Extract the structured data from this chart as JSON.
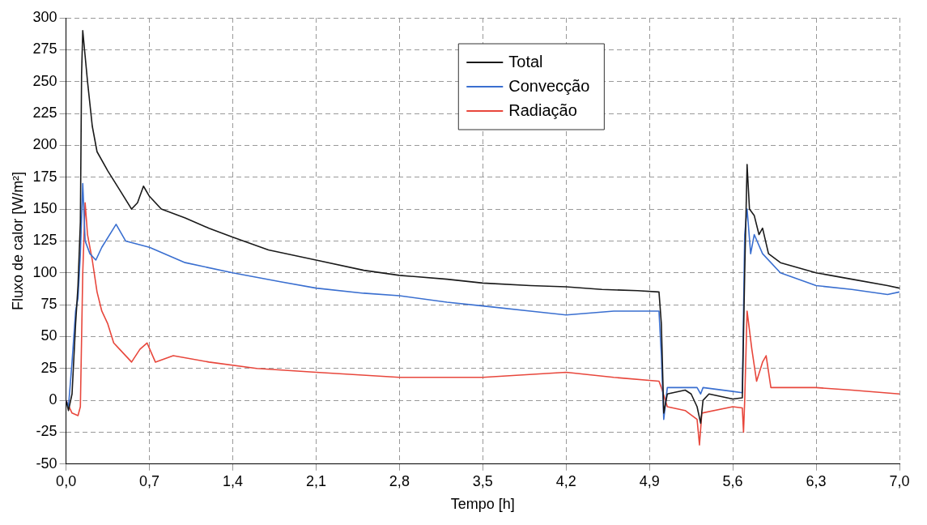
{
  "chart_data": {
    "type": "line",
    "xlabel": "Tempo [h]",
    "ylabel": "Fluxo de calor [W/m²]",
    "xlim": [
      0,
      7
    ],
    "xticks": [
      {
        "value": 0,
        "label": "0,0"
      },
      {
        "value": 0.7,
        "label": "0,7"
      },
      {
        "value": 1.4,
        "label": "1,4"
      },
      {
        "value": 2.1,
        "label": "2,1"
      },
      {
        "value": 2.8,
        "label": "2,8"
      },
      {
        "value": 3.5,
        "label": "3,5"
      },
      {
        "value": 4.2,
        "label": "4,2"
      },
      {
        "value": 4.9,
        "label": "4,9"
      },
      {
        "value": 5.6,
        "label": "5,6"
      },
      {
        "value": 6.3,
        "label": "6,3"
      },
      {
        "value": 7.0,
        "label": "7,0"
      }
    ],
    "ylim": [
      -50,
      300
    ],
    "yticks": [
      -50,
      -25,
      0,
      25,
      50,
      75,
      100,
      125,
      150,
      175,
      200,
      225,
      250,
      275,
      300
    ],
    "grid": true,
    "legend": "top",
    "marker": "none",
    "line_style": "solid",
    "series": [
      {
        "name": "Total",
        "color": "#1a1a1a",
        "x": [
          0,
          0.02,
          0.05,
          0.08,
          0.1,
          0.12,
          0.13,
          0.14,
          0.16,
          0.18,
          0.22,
          0.26,
          0.35,
          0.45,
          0.55,
          0.6,
          0.65,
          0.7,
          0.8,
          1.0,
          1.2,
          1.4,
          1.7,
          2.1,
          2.5,
          2.8,
          3.2,
          3.5,
          3.9,
          4.2,
          4.5,
          4.8,
          4.98,
          5.0,
          5.02,
          5.05,
          5.2,
          5.25,
          5.3,
          5.33,
          5.35,
          5.4,
          5.6,
          5.68,
          5.7,
          5.72,
          5.74,
          5.78,
          5.82,
          5.85,
          5.9,
          6.0,
          6.3,
          6.6,
          6.9,
          7.0
        ],
        "values": [
          0,
          -8,
          5,
          60,
          90,
          140,
          255,
          290,
          270,
          250,
          215,
          195,
          180,
          165,
          150,
          155,
          168,
          160,
          150,
          143,
          135,
          128,
          118,
          110,
          102,
          98,
          95,
          92,
          90,
          89,
          87,
          86,
          85,
          60,
          -10,
          5,
          8,
          5,
          -5,
          -18,
          0,
          5,
          1,
          2,
          100,
          185,
          150,
          145,
          130,
          135,
          115,
          108,
          100,
          95,
          90,
          88
        ]
      },
      {
        "name": "Convecção",
        "color": "#3a6fd0",
        "x": [
          0,
          0.02,
          0.05,
          0.08,
          0.1,
          0.12,
          0.14,
          0.16,
          0.2,
          0.25,
          0.3,
          0.4,
          0.42,
          0.5,
          0.7,
          1.0,
          1.4,
          1.8,
          2.1,
          2.5,
          2.8,
          3.2,
          3.5,
          3.9,
          4.2,
          4.6,
          4.98,
          5.0,
          5.02,
          5.05,
          5.3,
          5.33,
          5.35,
          5.6,
          5.68,
          5.7,
          5.72,
          5.75,
          5.78,
          5.85,
          6.0,
          6.3,
          6.6,
          6.9,
          7.0
        ],
        "values": [
          0,
          -5,
          30,
          70,
          80,
          115,
          170,
          125,
          115,
          110,
          120,
          135,
          138,
          125,
          120,
          108,
          100,
          93,
          88,
          84,
          82,
          77,
          74,
          70,
          67,
          70,
          70,
          35,
          -15,
          10,
          10,
          5,
          10,
          7,
          6,
          130,
          150,
          115,
          130,
          115,
          100,
          90,
          87,
          83,
          85
        ]
      },
      {
        "name": "Radiação",
        "color": "#e8473c",
        "x": [
          0,
          0.05,
          0.1,
          0.12,
          0.14,
          0.16,
          0.18,
          0.22,
          0.26,
          0.3,
          0.35,
          0.4,
          0.45,
          0.55,
          0.62,
          0.68,
          0.75,
          0.9,
          1.2,
          1.6,
          2.1,
          2.8,
          3.5,
          4.2,
          4.6,
          4.98,
          5.0,
          5.05,
          5.2,
          5.3,
          5.32,
          5.34,
          5.6,
          5.68,
          5.69,
          5.7,
          5.72,
          5.76,
          5.8,
          5.85,
          5.88,
          5.92,
          6.3,
          6.6,
          7.0
        ],
        "values": [
          0,
          -10,
          -12,
          -5,
          100,
          155,
          130,
          110,
          85,
          70,
          60,
          45,
          40,
          30,
          40,
          45,
          30,
          35,
          30,
          25,
          22,
          18,
          18,
          22,
          18,
          15,
          10,
          -5,
          -8,
          -15,
          -35,
          -10,
          -5,
          -6,
          -25,
          0,
          70,
          40,
          15,
          30,
          35,
          10,
          10,
          8,
          5
        ]
      }
    ]
  }
}
